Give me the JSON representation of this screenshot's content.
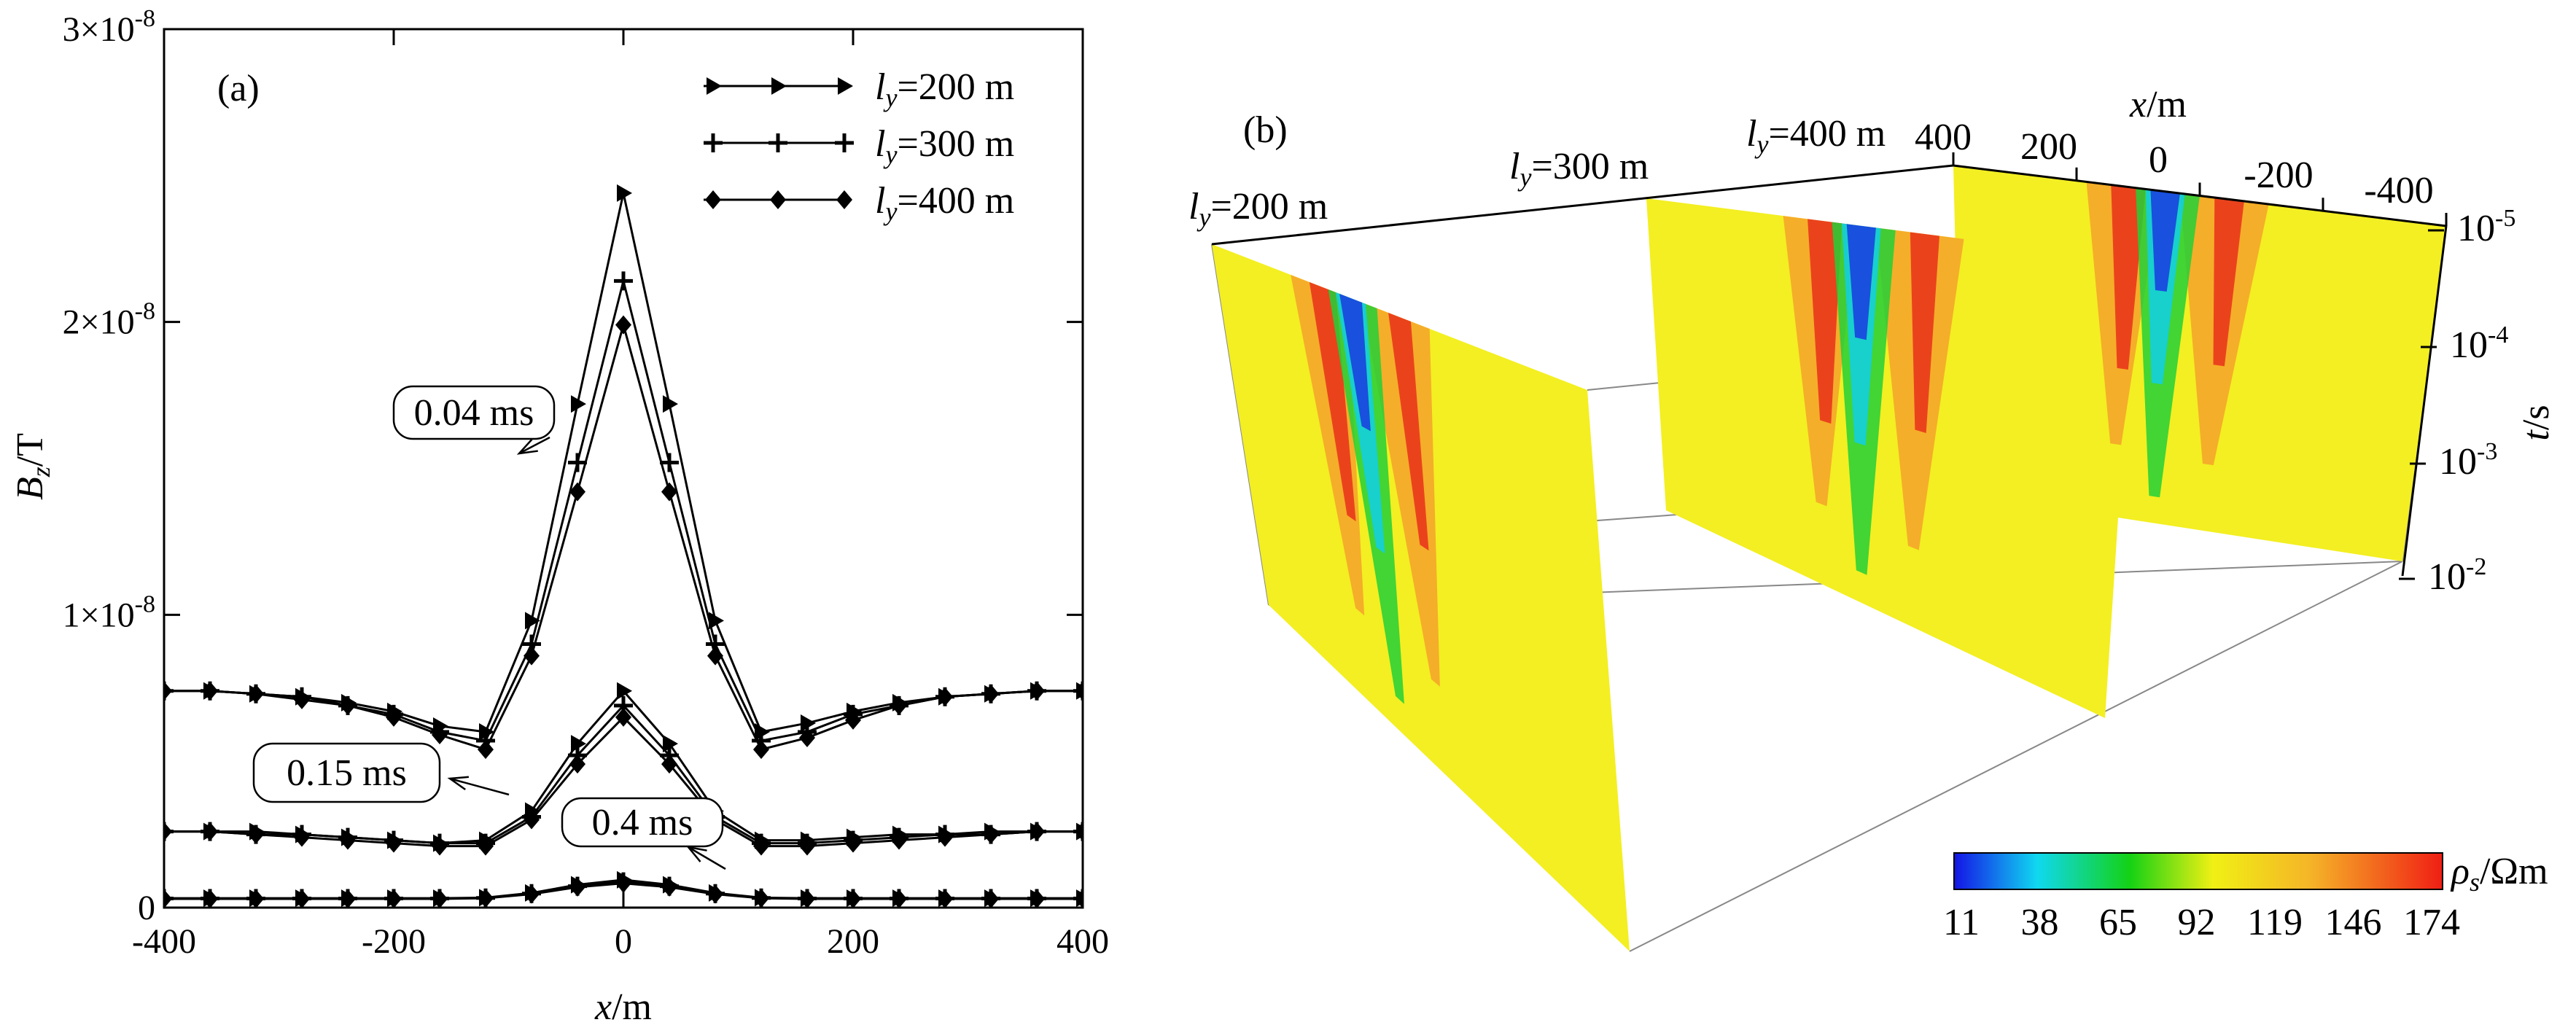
{
  "chart_data": [
    {
      "panel": "(a)",
      "type": "line",
      "xlabel": "x/m",
      "ylabel": "Bz/T",
      "xlim": [
        -400,
        400
      ],
      "ylim": [
        0,
        3e-08
      ],
      "x_ticks": [
        "-400",
        "-200",
        "0",
        "200",
        "400"
      ],
      "y_ticks": [
        "0",
        "1×10-8",
        "2×10-8",
        "3×10-8"
      ],
      "x": [
        -400,
        -360,
        -320,
        -280,
        -240,
        -200,
        -160,
        -120,
        -80,
        -40,
        0,
        40,
        80,
        120,
        160,
        200,
        240,
        280,
        320,
        360,
        400
      ],
      "legend": [
        "ly=200 m",
        "ly=300 m",
        "ly=400 m"
      ],
      "legend_location": "top-right",
      "groups": [
        {
          "annotation": "0.04 ms",
          "series": [
            {
              "name": "ly=200 m",
              "marker": "triangle",
              "values": [
                7.4e-09,
                7.4e-09,
                7.3e-09,
                7.2e-09,
                7e-09,
                6.7e-09,
                6.2e-09,
                6e-09,
                9.8e-09,
                1.72e-08,
                2.44e-08,
                1.72e-08,
                9.8e-09,
                6e-09,
                6.3e-09,
                6.7e-09,
                7e-09,
                7.2e-09,
                7.3e-09,
                7.4e-09,
                7.4e-09
              ]
            },
            {
              "name": "ly=300 m",
              "marker": "plus",
              "values": [
                7.4e-09,
                7.4e-09,
                7.3e-09,
                7.2e-09,
                6.9e-09,
                6.6e-09,
                6e-09,
                5.7e-09,
                9e-09,
                1.52e-08,
                2.14e-08,
                1.52e-08,
                9e-09,
                5.7e-09,
                6e-09,
                6.6e-09,
                6.9e-09,
                7.2e-09,
                7.3e-09,
                7.4e-09,
                7.4e-09
              ]
            },
            {
              "name": "ly=400 m",
              "marker": "diamond",
              "values": [
                7.4e-09,
                7.4e-09,
                7.3e-09,
                7.1e-09,
                6.9e-09,
                6.5e-09,
                5.9e-09,
                5.4e-09,
                8.6e-09,
                1.42e-08,
                1.99e-08,
                1.42e-08,
                8.6e-09,
                5.4e-09,
                5.8e-09,
                6.4e-09,
                6.9e-09,
                7.2e-09,
                7.3e-09,
                7.4e-09,
                7.4e-09
              ]
            }
          ]
        },
        {
          "annotation": "0.15 ms",
          "series": [
            {
              "name": "ly=200 m",
              "marker": "triangle",
              "values": [
                2.6e-09,
                2.6e-09,
                2.6e-09,
                2.5e-09,
                2.4e-09,
                2.3e-09,
                2.2e-09,
                2.3e-09,
                3.3e-09,
                5.6e-09,
                7.4e-09,
                5.6e-09,
                3.3e-09,
                2.3e-09,
                2.3e-09,
                2.4e-09,
                2.5e-09,
                2.5e-09,
                2.6e-09,
                2.6e-09,
                2.6e-09
              ]
            },
            {
              "name": "ly=300 m",
              "marker": "plus",
              "values": [
                2.6e-09,
                2.6e-09,
                2.5e-09,
                2.5e-09,
                2.4e-09,
                2.3e-09,
                2.2e-09,
                2.2e-09,
                3.1e-09,
                5.2e-09,
                6.9e-09,
                5.2e-09,
                3.1e-09,
                2.2e-09,
                2.2e-09,
                2.3e-09,
                2.4e-09,
                2.5e-09,
                2.5e-09,
                2.6e-09,
                2.6e-09
              ]
            },
            {
              "name": "ly=400 m",
              "marker": "diamond",
              "values": [
                2.6e-09,
                2.6e-09,
                2.5e-09,
                2.4e-09,
                2.3e-09,
                2.2e-09,
                2.1e-09,
                2.1e-09,
                3e-09,
                4.9e-09,
                6.5e-09,
                4.9e-09,
                3e-09,
                2.1e-09,
                2.1e-09,
                2.2e-09,
                2.3e-09,
                2.4e-09,
                2.5e-09,
                2.6e-09,
                2.6e-09
              ]
            }
          ]
        },
        {
          "annotation": "0.4 ms",
          "series": [
            {
              "name": "ly=200 m",
              "marker": "triangle",
              "values": [
                3.2e-10,
                3.2e-10,
                3.2e-10,
                3.2e-10,
                3.2e-10,
                3.2e-10,
                3.2e-10,
                3.4e-10,
                5e-10,
                7.8e-10,
                9.5e-10,
                7.8e-10,
                5e-10,
                3.4e-10,
                3.2e-10,
                3.2e-10,
                3.2e-10,
                3.2e-10,
                3.2e-10,
                3.2e-10,
                3.2e-10
              ]
            },
            {
              "name": "ly=300 m",
              "marker": "plus",
              "values": [
                3.1e-10,
                3.1e-10,
                3.1e-10,
                3.1e-10,
                3.1e-10,
                3.1e-10,
                3.1e-10,
                3.3e-10,
                4.8e-10,
                7.3e-10,
                8.8e-10,
                7.3e-10,
                4.8e-10,
                3.3e-10,
                3.1e-10,
                3.1e-10,
                3.1e-10,
                3.1e-10,
                3.1e-10,
                3.1e-10,
                3.1e-10
              ]
            },
            {
              "name": "ly=400 m",
              "marker": "diamond",
              "values": [
                3e-10,
                3e-10,
                3e-10,
                3e-10,
                3e-10,
                3e-10,
                3e-10,
                3.2e-10,
                4.6e-10,
                7e-10,
                8.3e-10,
                7e-10,
                4.6e-10,
                3.2e-10,
                3e-10,
                3e-10,
                3e-10,
                3e-10,
                3e-10,
                3e-10,
                3e-10
              ]
            }
          ]
        }
      ]
    },
    {
      "panel": "(b)",
      "type": "heatmap",
      "xlabel": "x/m",
      "ylabel": "t/s",
      "x_ticks": [
        "400",
        "200",
        "0",
        "-200",
        "-400"
      ],
      "t_ticks": [
        "10-5",
        "10-4",
        "10-3",
        "10-2"
      ],
      "slice_labels": [
        "ly=200 m",
        "ly=300 m",
        "ly=400 m"
      ],
      "colorbar_label": "ρs/Ωm",
      "colorbar_ticks": [
        "11",
        "38",
        "65",
        "92",
        "119",
        "146",
        "174"
      ],
      "colorbar_range": [
        11,
        174
      ],
      "colors": [
        "#1414e6",
        "#10d8f0",
        "#14d214",
        "#f0f014",
        "#f5b428",
        "#f01e14"
      ]
    }
  ]
}
